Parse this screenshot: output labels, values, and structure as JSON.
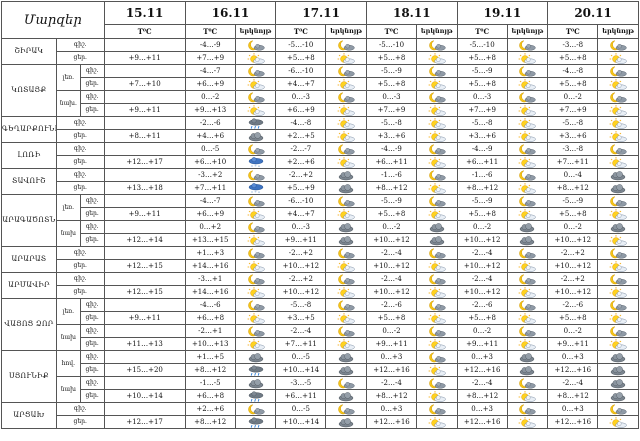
{
  "header": {
    "region_label": "Մարզեր",
    "dates": [
      "15.11",
      "16.11",
      "17.11",
      "18.11",
      "19.11",
      "20.11"
    ],
    "temp_label": "T⁰C",
    "sky_label": "երկնոյթ",
    "period_labels": [
      "ցեր.",
      "գիշ.",
      "ցեր.",
      "գիշ.",
      "ցեր.",
      "գիշ.",
      "ցեր.",
      "գիշ.",
      "ցեր.",
      "գիշ.",
      "ցեր."
    ]
  },
  "icons": {
    "sun": "sun-icon",
    "suncloud": "sun-cloud-icon",
    "moon": "moon-icon",
    "mooncloud": "moon-cloud-icon",
    "cloud": "cloud-icon",
    "rain": "rain-icon",
    "snow": "snow-icon"
  },
  "regions": [
    {
      "name": "ՇԻՐԱԿ",
      "rows": [
        {
          "zone": "",
          "period": "գիշ.",
          "t": [
            "",
            "-4…-9",
            "-5…-10",
            "-5…-10",
            "-5…-10",
            "-3…-8"
          ],
          "ic": [
            "",
            "mooncloud",
            "mooncloud",
            "mooncloud",
            "mooncloud",
            "mooncloud"
          ]
        },
        {
          "zone": "",
          "period": "ցեր.",
          "t": [
            "+9…+11",
            "+7…+9",
            "+5…+8",
            "+5…+8",
            "+5…+8",
            "+5…+8"
          ],
          "ic": [
            "",
            "suncloud",
            "suncloud",
            "suncloud",
            "suncloud",
            "suncloud"
          ]
        }
      ]
    },
    {
      "name": "ԿՈՏԱՅՔ",
      "rows": [
        {
          "zone": "լեռ.",
          "period": "գիշ.",
          "t": [
            "",
            "-4…-7",
            "-6…-10",
            "-5…-9",
            "-5…-9",
            "-4…-8"
          ],
          "ic": [
            "",
            "mooncloud",
            "mooncloud",
            "mooncloud",
            "mooncloud",
            "mooncloud"
          ]
        },
        {
          "zone": "լեռ.",
          "period": "ցեր.",
          "t": [
            "+7…+10",
            "+6…+9",
            "+4…+7",
            "+5…+8",
            "+5…+8",
            "+5…+8"
          ],
          "ic": [
            "",
            "suncloud",
            "suncloud",
            "suncloud",
            "suncloud",
            "suncloud"
          ]
        },
        {
          "zone": "նախ.",
          "period": "գիշ.",
          "t": [
            "",
            "0…-2",
            "0…-3",
            "0…-3",
            "0…-3",
            "0…-2"
          ],
          "ic": [
            "",
            "mooncloud",
            "mooncloud",
            "mooncloud",
            "mooncloud",
            "mooncloud"
          ]
        },
        {
          "zone": "նախ.",
          "period": "ցեր.",
          "t": [
            "+9…+11",
            "+9…+13",
            "+6…+9",
            "+7…+9",
            "+7…+9",
            "+7…+9"
          ],
          "ic": [
            "",
            "suncloud",
            "suncloud",
            "suncloud",
            "suncloud",
            "suncloud"
          ]
        }
      ]
    },
    {
      "name": "ԳԵՂԱՐՔՈՒՆԻՔ",
      "rows": [
        {
          "zone": "",
          "period": "գիշ.",
          "t": [
            "",
            "-2…-6",
            "-4…-8",
            "-5…-8",
            "-5…-8",
            "-5…-8"
          ],
          "ic": [
            "",
            "rain",
            "suncloud",
            "suncloud",
            "suncloud",
            "suncloud"
          ]
        },
        {
          "zone": "",
          "period": "ցեր.",
          "t": [
            "+8…+11",
            "+4…+6",
            "+2…+5",
            "+3…+6",
            "+3…+6",
            "+3…+6"
          ],
          "ic": [
            "",
            "cloud",
            "suncloud",
            "suncloud",
            "suncloud",
            "suncloud"
          ]
        }
      ]
    },
    {
      "name": "ԼՈՌԻ",
      "rows": [
        {
          "zone": "",
          "period": "գիշ.",
          "t": [
            "",
            "0…-5",
            "-2…-7",
            "-4…-9",
            "-4…-9",
            "-3…-8"
          ],
          "ic": [
            "",
            "mooncloud",
            "mooncloud",
            "mooncloud",
            "mooncloud",
            "mooncloud"
          ]
        },
        {
          "zone": "",
          "period": "ցեր.",
          "t": [
            "+12…+17",
            "+6…+10",
            "+2…+6",
            "+6…+11",
            "+6…+11",
            "+7…+11"
          ],
          "ic": [
            "",
            "snow",
            "suncloud",
            "suncloud",
            "suncloud",
            "suncloud"
          ]
        }
      ]
    },
    {
      "name": "ՏԱՎՈՒՇ",
      "rows": [
        {
          "zone": "",
          "period": "գիշ.",
          "t": [
            "",
            "-3…+2",
            "-2…+2",
            "-1…-6",
            "-1…-6",
            "0…-4"
          ],
          "ic": [
            "",
            "mooncloud",
            "cloud",
            "mooncloud",
            "mooncloud",
            "cloud"
          ]
        },
        {
          "zone": "",
          "period": "ցեր.",
          "t": [
            "+13…+18",
            "+7…+11",
            "+5…+9",
            "+8…+12",
            "+8…+12",
            "+8…+12"
          ],
          "ic": [
            "",
            "snow",
            "cloud",
            "suncloud",
            "suncloud",
            "cloud"
          ]
        }
      ]
    },
    {
      "name": "ԱՐԱԳԱԾՈՏՆ",
      "rows": [
        {
          "zone": "լեռ.",
          "period": "գիշ.",
          "t": [
            "",
            "-4…-7",
            "-6…-10",
            "-5…-9",
            "-5…-9",
            "-5…-9"
          ],
          "ic": [
            "",
            "mooncloud",
            "mooncloud",
            "mooncloud",
            "mooncloud",
            "mooncloud"
          ]
        },
        {
          "zone": "լեռ.",
          "period": "ցեր.",
          "t": [
            "+9…+11",
            "+6…+9",
            "+4…+7",
            "+5…+8",
            "+5…+8",
            "+5…+8"
          ],
          "ic": [
            "",
            "suncloud",
            "suncloud",
            "suncloud",
            "suncloud",
            "suncloud"
          ]
        },
        {
          "zone": "նախ",
          "period": "գիշ.",
          "t": [
            "",
            "0…+2",
            "0…-3",
            "0…-2",
            "0…-2",
            "0…-2"
          ],
          "ic": [
            "",
            "mooncloud",
            "cloud",
            "cloud",
            "cloud",
            "cloud"
          ]
        },
        {
          "zone": "նախ",
          "period": "ցեր.",
          "t": [
            "+12…+14",
            "+13…+15",
            "+9…+11",
            "+10…+12",
            "+10…+12",
            "+10…+12"
          ],
          "ic": [
            "",
            "suncloud",
            "cloud",
            "cloud",
            "cloud",
            "suncloud"
          ]
        }
      ]
    },
    {
      "name": "ԱՐԱՐԱՏ",
      "rows": [
        {
          "zone": "",
          "period": "գիշ.",
          "t": [
            "",
            "+1…+3",
            "-2…+2",
            "-2…-4",
            "-2…-4",
            "-2…+2"
          ],
          "ic": [
            "",
            "mooncloud",
            "mooncloud",
            "mooncloud",
            "mooncloud",
            "mooncloud"
          ]
        },
        {
          "zone": "",
          "period": "ցեր.",
          "t": [
            "+12…+15",
            "+14…+16",
            "+10…+12",
            "+10…+12",
            "+10…+12",
            "+10…+12"
          ],
          "ic": [
            "",
            "suncloud",
            "suncloud",
            "suncloud",
            "suncloud",
            "suncloud"
          ]
        }
      ]
    },
    {
      "name": "ԱՐՄԱՎԻՐ",
      "rows": [
        {
          "zone": "",
          "period": "գիշ.",
          "t": [
            "",
            "-3…+1",
            "-2…+2",
            "-2…-4",
            "-2…-4",
            "-2…+2"
          ],
          "ic": [
            "",
            "mooncloud",
            "mooncloud",
            "mooncloud",
            "mooncloud",
            "mooncloud"
          ]
        },
        {
          "zone": "",
          "period": "ցեր.",
          "t": [
            "+12…+15",
            "+14…+16",
            "+10…+12",
            "+10…+12",
            "+10…+12",
            "+10…+12"
          ],
          "ic": [
            "",
            "suncloud",
            "suncloud",
            "suncloud",
            "suncloud",
            "suncloud"
          ]
        }
      ]
    },
    {
      "name": "ՎԱՅՈՑ ՁՈՐ",
      "rows": [
        {
          "zone": "լեռ.",
          "period": "գիշ.",
          "t": [
            "",
            "-4…-6",
            "-5…-8",
            "-2…-6",
            "-2…-6",
            "-2…-6"
          ],
          "ic": [
            "",
            "mooncloud",
            "mooncloud",
            "mooncloud",
            "mooncloud",
            "mooncloud"
          ]
        },
        {
          "zone": "լեռ.",
          "period": "ցեր.",
          "t": [
            "+9…+11",
            "+6…+8",
            "+3…+5",
            "+5…+8",
            "+5…+8",
            "+5…+8"
          ],
          "ic": [
            "",
            "suncloud",
            "suncloud",
            "suncloud",
            "suncloud",
            "suncloud"
          ]
        },
        {
          "zone": "նախ",
          "period": "գիշ.",
          "t": [
            "",
            "-2…+1",
            "-2…-4",
            "0…-2",
            "0…-2",
            "0…-2"
          ],
          "ic": [
            "",
            "mooncloud",
            "mooncloud",
            "mooncloud",
            "mooncloud",
            "mooncloud"
          ]
        },
        {
          "zone": "նախ",
          "period": "ցեր.",
          "t": [
            "+11…+13",
            "+10…+13",
            "+7…+11",
            "+9…+11",
            "+9…+11",
            "+9…+11"
          ],
          "ic": [
            "",
            "suncloud",
            "suncloud",
            "suncloud",
            "suncloud",
            "suncloud"
          ]
        }
      ]
    },
    {
      "name": "ՍՅՈՒՆԻՔ",
      "rows": [
        {
          "zone": "հով.",
          "period": "գիշ.",
          "t": [
            "",
            "+1…+5",
            "0…-5",
            "0…+3",
            "0…+3",
            "0…+3"
          ],
          "ic": [
            "",
            "cloud",
            "cloud",
            "mooncloud",
            "cloud",
            "cloud"
          ]
        },
        {
          "zone": "հով.",
          "period": "ցեր.",
          "t": [
            "+15…+20",
            "+8…+12",
            "+10…+14",
            "+12…+16",
            "+12…+16",
            "+12…+16"
          ],
          "ic": [
            "",
            "rain",
            "cloud",
            "suncloud",
            "cloud",
            "cloud"
          ]
        },
        {
          "zone": "նախ",
          "period": "գիշ.",
          "t": [
            "",
            "-1…-5",
            "-3…-5",
            "-2…-4",
            "-2…-4",
            "-2…-4"
          ],
          "ic": [
            "",
            "cloud",
            "mooncloud",
            "mooncloud",
            "mooncloud",
            "cloud"
          ]
        },
        {
          "zone": "նախ",
          "period": "ցեր.",
          "t": [
            "+10…+14",
            "+6…+8",
            "+6…+11",
            "+8…+12",
            "+8…+12",
            "+8…+12"
          ],
          "ic": [
            "",
            "rain",
            "cloud",
            "suncloud",
            "suncloud",
            "cloud"
          ]
        }
      ]
    },
    {
      "name": "ԱՐՑԱԽ",
      "rows": [
        {
          "zone": "",
          "period": "գիշ.",
          "t": [
            "",
            "+2…+6",
            "0…-5",
            "0…+3",
            "0…+3",
            "0…+3"
          ],
          "ic": [
            "",
            "mooncloud",
            "mooncloud",
            "mooncloud",
            "mooncloud",
            "mooncloud"
          ]
        },
        {
          "zone": "",
          "period": "ցեր.",
          "t": [
            "+12…+17",
            "+8…+12",
            "+10…+14",
            "+12…+16",
            "+12…+16",
            "+12…+16"
          ],
          "ic": [
            "",
            "rain",
            "cloud",
            "suncloud",
            "suncloud",
            "suncloud"
          ]
        }
      ]
    }
  ]
}
